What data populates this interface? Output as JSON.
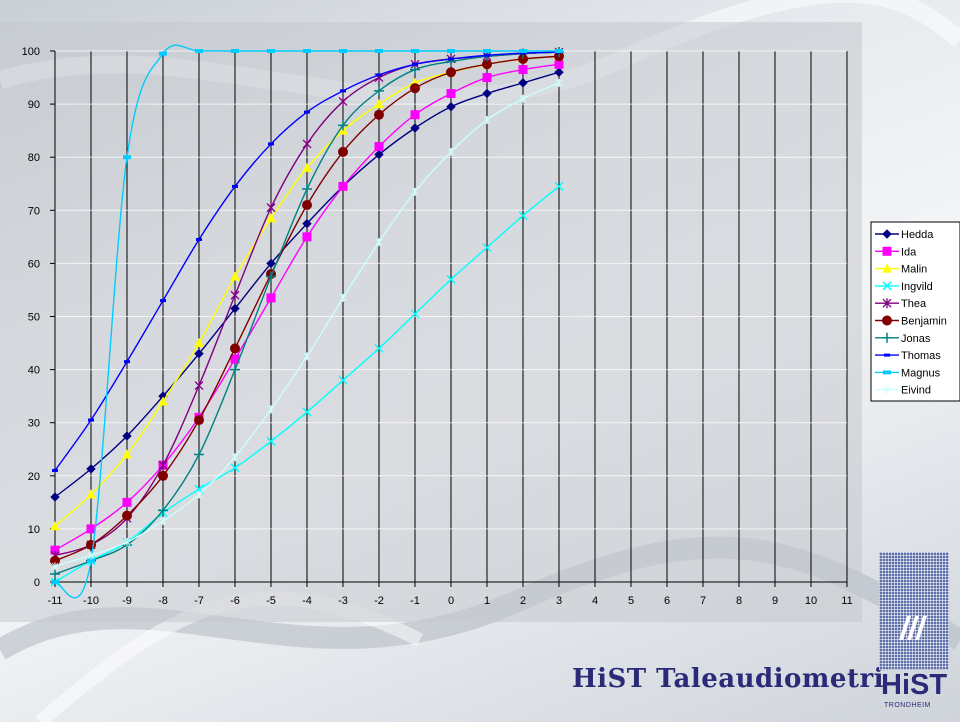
{
  "chart_data": {
    "type": "line",
    "title": "",
    "xlabel": "",
    "ylabel": "",
    "xlim": [
      -11,
      11
    ],
    "ylim": [
      0,
      100
    ],
    "x_ticks": [
      -11,
      -10,
      -9,
      -8,
      -7,
      -6,
      -5,
      -4,
      -3,
      -2,
      -1,
      0,
      1,
      2,
      3,
      4,
      5,
      6,
      7,
      8,
      9,
      10,
      11
    ],
    "y_ticks": [
      0,
      10,
      20,
      30,
      40,
      50,
      60,
      70,
      80,
      90,
      100
    ],
    "grid": "vertical and horizontal",
    "legend_position": "right",
    "series": [
      {
        "name": "Hedda",
        "color": "#000080",
        "marker": "diamond",
        "x": [
          -11,
          -10,
          -9,
          -8,
          -7,
          -6,
          -5,
          -4,
          -3,
          -2,
          -1,
          0,
          1,
          2,
          3
        ],
        "y": [
          16,
          21.3,
          27.5,
          35,
          43,
          51.5,
          60,
          67.5,
          74.5,
          80.5,
          85.5,
          89.5,
          92,
          94,
          96
        ]
      },
      {
        "name": "Ida",
        "color": "#ff00ff",
        "marker": "square",
        "x": [
          -11,
          -10,
          -9,
          -8,
          -7,
          -6,
          -5,
          -4,
          -3,
          -2,
          -1,
          0,
          1,
          2,
          3
        ],
        "y": [
          6,
          10,
          15,
          22,
          31,
          42,
          53.5,
          65,
          74.5,
          82,
          88,
          92,
          95,
          96.5,
          97.5
        ]
      },
      {
        "name": "Malin",
        "color": "#ffff00",
        "marker": "triangle",
        "x": [
          -11,
          -10,
          -9,
          -8,
          -7,
          -6,
          -5,
          -4,
          -3,
          -2,
          -1,
          0,
          1,
          2,
          3
        ],
        "y": [
          10.5,
          16.5,
          24,
          34,
          45,
          57.5,
          68.5,
          78,
          85,
          90,
          94,
          96,
          97.5,
          98.5,
          99
        ]
      },
      {
        "name": "Ingvild",
        "color": "#00ffff",
        "marker": "x",
        "x": [
          -11,
          -10,
          -9,
          -8,
          -7,
          -6,
          -5,
          -4,
          -3,
          -2,
          -1,
          0,
          1,
          2,
          3
        ],
        "y": [
          0,
          4,
          7.5,
          13,
          17.5,
          21.5,
          26.5,
          32,
          38,
          44,
          50.5,
          57,
          63,
          69,
          74.5
        ]
      },
      {
        "name": "Thea",
        "color": "#800080",
        "marker": "star",
        "x": [
          -11,
          -10,
          -9,
          -8,
          -7,
          -6,
          -5,
          -4,
          -3,
          -2,
          -1,
          0,
          1,
          2,
          3
        ],
        "y": [
          5,
          7,
          12,
          22,
          37,
          54,
          70.5,
          82.5,
          90.5,
          95,
          97.5,
          98.5,
          99,
          99.5,
          99.8
        ]
      },
      {
        "name": "Benjamin",
        "color": "#800000",
        "marker": "circle",
        "x": [
          -11,
          -10,
          -9,
          -8,
          -7,
          -6,
          -5,
          -4,
          -3,
          -2,
          -1,
          0,
          1,
          2,
          3
        ],
        "y": [
          4,
          7,
          12.5,
          20,
          30.5,
          44,
          58,
          71,
          81,
          88,
          93,
          96,
          97.5,
          98.5,
          99
        ]
      },
      {
        "name": "Jonas",
        "color": "#008080",
        "marker": "plus",
        "x": [
          -11,
          -10,
          -9,
          -8,
          -7,
          -6,
          -5,
          -4,
          -3,
          -2,
          -1,
          0,
          1,
          2,
          3
        ],
        "y": [
          1.5,
          4,
          7,
          13.5,
          24,
          40,
          57.5,
          74,
          86,
          92.5,
          96.5,
          98,
          99,
          99.5,
          99.8
        ]
      },
      {
        "name": "Thomas",
        "color": "#0000ff",
        "marker": "dash",
        "x": [
          -11,
          -10,
          -9,
          -8,
          -7,
          -6,
          -5,
          -4,
          -3,
          -2,
          -1,
          0,
          1,
          2,
          3
        ],
        "y": [
          21,
          30.5,
          41.5,
          53,
          64.5,
          74.5,
          82.5,
          88.5,
          92.5,
          95.5,
          97.5,
          98.5,
          99.2,
          99.6,
          99.8
        ]
      },
      {
        "name": "Magnus",
        "color": "#00ccff",
        "marker": "square-small",
        "x": [
          -11,
          -10,
          -9,
          -8,
          -7,
          -6,
          -5,
          -4,
          -3,
          -2,
          -1,
          0,
          1,
          2,
          3
        ],
        "y": [
          0,
          4,
          80,
          99.5,
          100,
          100,
          100,
          100,
          100,
          100,
          100,
          100,
          100,
          100,
          100
        ]
      },
      {
        "name": "Eivind",
        "color": "#ccffff",
        "marker": "star-small",
        "x": [
          -11,
          -10,
          -9,
          -8,
          -7,
          -6,
          -5,
          -4,
          -3,
          -2,
          -1,
          0,
          1,
          2,
          3
        ],
        "y": [
          3,
          5,
          7.5,
          11.5,
          16.5,
          23.5,
          32.5,
          42.5,
          53.5,
          64,
          73.5,
          81,
          87,
          91,
          94
        ]
      }
    ]
  },
  "footer": {
    "title": "HiST Taleaudiometri",
    "logo_text": "HiST",
    "logo_subtext": "TRONDHEIM"
  }
}
